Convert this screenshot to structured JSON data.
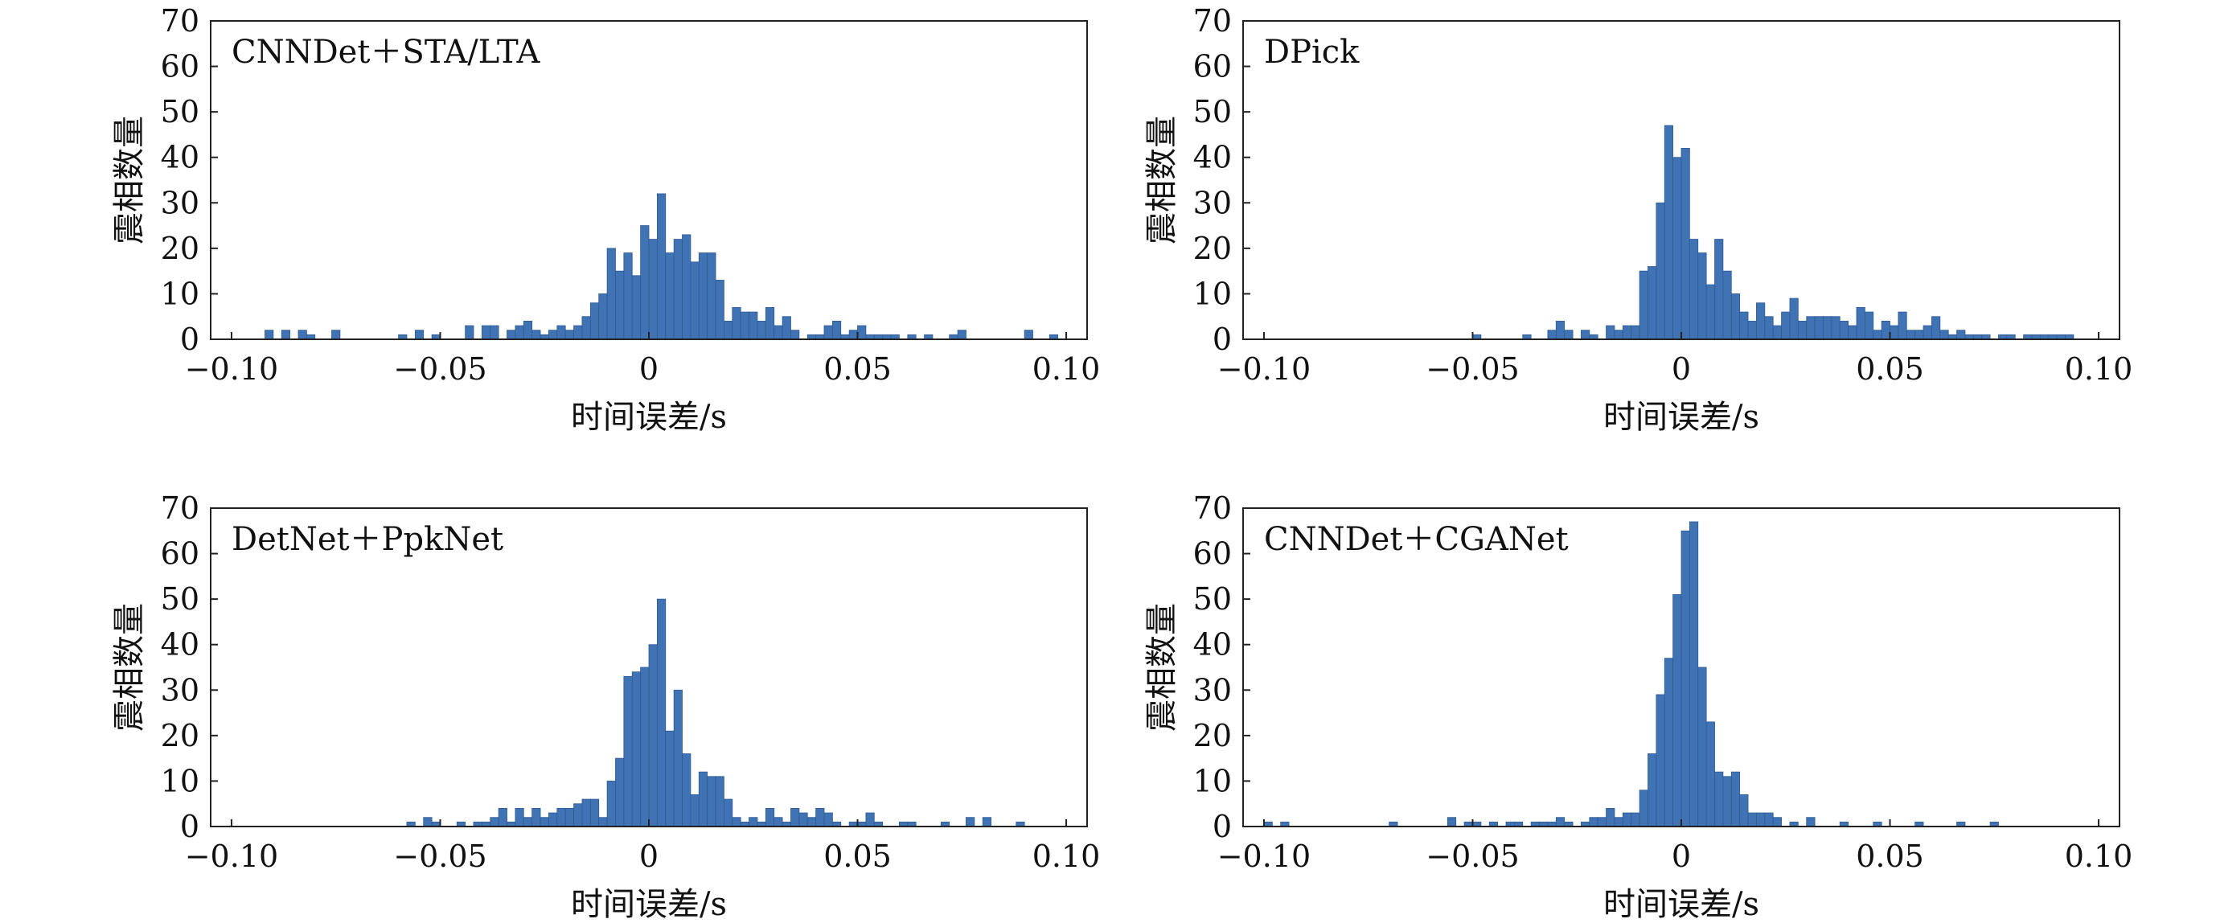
{
  "figure": {
    "panels": [
      {
        "label": "CNNDet＋STA/LTA",
        "xlabel": "时间误差/s",
        "ylabel": "震相数量"
      },
      {
        "label": "DPick",
        "xlabel": "时间误差/s",
        "ylabel": "震相数量"
      },
      {
        "label": "DetNet＋PpkNet",
        "xlabel": "时间误差/s",
        "ylabel": "震相数量"
      },
      {
        "label": "CNNDet＋CGANet",
        "xlabel": "时间误差/s",
        "ylabel": "震相数量"
      }
    ]
  },
  "chart_data": [
    {
      "type": "bar",
      "title": "CNNDet＋STA/LTA",
      "xlabel": "时间误差/s",
      "ylabel": "震相数量",
      "xlim": [
        -0.105,
        0.105
      ],
      "ylim": [
        0,
        70
      ],
      "xticks": [
        "−0.10",
        "−0.05",
        "0",
        "0.05",
        "0.10"
      ],
      "yticks": [
        "0",
        "10",
        "20",
        "30",
        "40",
        "50",
        "60",
        "70"
      ],
      "bin_width": 0.002,
      "bins": [
        [
          -0.091,
          2
        ],
        [
          -0.087,
          2
        ],
        [
          -0.083,
          2
        ],
        [
          -0.081,
          1
        ],
        [
          -0.075,
          2
        ],
        [
          -0.059,
          1
        ],
        [
          -0.055,
          2
        ],
        [
          -0.051,
          1
        ],
        [
          -0.043,
          3
        ],
        [
          -0.039,
          3
        ],
        [
          -0.037,
          3
        ],
        [
          -0.033,
          2
        ],
        [
          -0.031,
          3
        ],
        [
          -0.029,
          4
        ],
        [
          -0.027,
          2
        ],
        [
          -0.025,
          1
        ],
        [
          -0.023,
          2
        ],
        [
          -0.021,
          3
        ],
        [
          -0.019,
          2
        ],
        [
          -0.017,
          3
        ],
        [
          -0.015,
          5
        ],
        [
          -0.013,
          8
        ],
        [
          -0.011,
          10
        ],
        [
          -0.009,
          20
        ],
        [
          -0.007,
          15
        ],
        [
          -0.005,
          19
        ],
        [
          -0.003,
          14
        ],
        [
          -0.001,
          25
        ],
        [
          0.001,
          22
        ],
        [
          0.003,
          32
        ],
        [
          0.005,
          19
        ],
        [
          0.007,
          22
        ],
        [
          0.009,
          23
        ],
        [
          0.011,
          17
        ],
        [
          0.013,
          19
        ],
        [
          0.015,
          19
        ],
        [
          0.017,
          13
        ],
        [
          0.019,
          4
        ],
        [
          0.021,
          7
        ],
        [
          0.023,
          6
        ],
        [
          0.025,
          6
        ],
        [
          0.027,
          4
        ],
        [
          0.029,
          7
        ],
        [
          0.031,
          3
        ],
        [
          0.033,
          5
        ],
        [
          0.035,
          2
        ],
        [
          0.039,
          1
        ],
        [
          0.041,
          1
        ],
        [
          0.043,
          3
        ],
        [
          0.045,
          4
        ],
        [
          0.047,
          1
        ],
        [
          0.049,
          2
        ],
        [
          0.051,
          3
        ],
        [
          0.053,
          1
        ],
        [
          0.055,
          1
        ],
        [
          0.057,
          1
        ],
        [
          0.059,
          1
        ],
        [
          0.063,
          1
        ],
        [
          0.067,
          1
        ],
        [
          0.073,
          1
        ],
        [
          0.075,
          2
        ],
        [
          0.091,
          2
        ],
        [
          0.097,
          1
        ]
      ]
    },
    {
      "type": "bar",
      "title": "DPick",
      "xlabel": "时间误差/s",
      "ylabel": "震相数量",
      "xlim": [
        -0.105,
        0.105
      ],
      "ylim": [
        0,
        70
      ],
      "xticks": [
        "−0.10",
        "−0.05",
        "0",
        "0.05",
        "0.10"
      ],
      "yticks": [
        "0",
        "10",
        "20",
        "30",
        "40",
        "50",
        "60",
        "70"
      ],
      "bin_width": 0.002,
      "bins": [
        [
          -0.049,
          1
        ],
        [
          -0.037,
          1
        ],
        [
          -0.031,
          2
        ],
        [
          -0.029,
          4
        ],
        [
          -0.027,
          2
        ],
        [
          -0.023,
          2
        ],
        [
          -0.021,
          1
        ],
        [
          -0.017,
          3
        ],
        [
          -0.015,
          2
        ],
        [
          -0.013,
          3
        ],
        [
          -0.011,
          3
        ],
        [
          -0.009,
          15
        ],
        [
          -0.007,
          16
        ],
        [
          -0.005,
          30
        ],
        [
          -0.003,
          47
        ],
        [
          -0.001,
          40
        ],
        [
          0.001,
          42
        ],
        [
          0.003,
          22
        ],
        [
          0.005,
          19
        ],
        [
          0.007,
          12
        ],
        [
          0.009,
          22
        ],
        [
          0.011,
          15
        ],
        [
          0.013,
          10
        ],
        [
          0.015,
          6
        ],
        [
          0.017,
          4
        ],
        [
          0.019,
          8
        ],
        [
          0.021,
          5
        ],
        [
          0.023,
          3
        ],
        [
          0.025,
          6
        ],
        [
          0.027,
          9
        ],
        [
          0.029,
          4
        ],
        [
          0.031,
          5
        ],
        [
          0.033,
          5
        ],
        [
          0.035,
          5
        ],
        [
          0.037,
          5
        ],
        [
          0.039,
          4
        ],
        [
          0.041,
          3
        ],
        [
          0.043,
          7
        ],
        [
          0.045,
          6
        ],
        [
          0.047,
          2
        ],
        [
          0.049,
          4
        ],
        [
          0.051,
          3
        ],
        [
          0.053,
          6
        ],
        [
          0.055,
          2
        ],
        [
          0.057,
          2
        ],
        [
          0.059,
          3
        ],
        [
          0.061,
          5
        ],
        [
          0.063,
          2
        ],
        [
          0.065,
          1
        ],
        [
          0.067,
          2
        ],
        [
          0.069,
          1
        ],
        [
          0.071,
          1
        ],
        [
          0.073,
          1
        ],
        [
          0.077,
          1
        ],
        [
          0.079,
          1
        ],
        [
          0.083,
          1
        ],
        [
          0.085,
          1
        ],
        [
          0.087,
          1
        ],
        [
          0.089,
          1
        ],
        [
          0.091,
          1
        ],
        [
          0.093,
          1
        ]
      ]
    },
    {
      "type": "bar",
      "title": "DetNet＋PpkNet",
      "xlabel": "时间误差/s",
      "ylabel": "震相数量",
      "xlim": [
        -0.105,
        0.105
      ],
      "ylim": [
        0,
        70
      ],
      "xticks": [
        "−0.10",
        "−0.05",
        "0",
        "0.05",
        "0.10"
      ],
      "yticks": [
        "0",
        "10",
        "20",
        "30",
        "40",
        "50",
        "60",
        "70"
      ],
      "bin_width": 0.002,
      "bins": [
        [
          -0.057,
          1
        ],
        [
          -0.053,
          2
        ],
        [
          -0.051,
          1
        ],
        [
          -0.045,
          1
        ],
        [
          -0.041,
          1
        ],
        [
          -0.039,
          1
        ],
        [
          -0.037,
          2
        ],
        [
          -0.035,
          4
        ],
        [
          -0.033,
          1
        ],
        [
          -0.031,
          4
        ],
        [
          -0.029,
          2
        ],
        [
          -0.027,
          4
        ],
        [
          -0.025,
          2
        ],
        [
          -0.023,
          3
        ],
        [
          -0.021,
          4
        ],
        [
          -0.019,
          4
        ],
        [
          -0.017,
          5
        ],
        [
          -0.015,
          6
        ],
        [
          -0.013,
          6
        ],
        [
          -0.011,
          2
        ],
        [
          -0.009,
          10
        ],
        [
          -0.007,
          15
        ],
        [
          -0.005,
          33
        ],
        [
          -0.003,
          34
        ],
        [
          -0.001,
          35
        ],
        [
          0.001,
          40
        ],
        [
          0.003,
          50
        ],
        [
          0.005,
          21
        ],
        [
          0.007,
          30
        ],
        [
          0.009,
          16
        ],
        [
          0.011,
          7
        ],
        [
          0.013,
          12
        ],
        [
          0.015,
          11
        ],
        [
          0.017,
          11
        ],
        [
          0.019,
          6
        ],
        [
          0.021,
          2
        ],
        [
          0.023,
          1
        ],
        [
          0.025,
          2
        ],
        [
          0.027,
          1
        ],
        [
          0.029,
          4
        ],
        [
          0.031,
          2
        ],
        [
          0.033,
          1
        ],
        [
          0.035,
          4
        ],
        [
          0.037,
          3
        ],
        [
          0.039,
          2
        ],
        [
          0.041,
          4
        ],
        [
          0.043,
          3
        ],
        [
          0.045,
          1
        ],
        [
          0.049,
          1
        ],
        [
          0.051,
          1
        ],
        [
          0.053,
          3
        ],
        [
          0.055,
          1
        ],
        [
          0.061,
          1
        ],
        [
          0.063,
          1
        ],
        [
          0.071,
          1
        ],
        [
          0.077,
          2
        ],
        [
          0.081,
          2
        ],
        [
          0.089,
          1
        ]
      ]
    },
    {
      "type": "bar",
      "title": "CNNDet＋CGANet",
      "xlabel": "时间误差/s",
      "ylabel": "震相数量",
      "xlim": [
        -0.105,
        0.105
      ],
      "ylim": [
        0,
        70
      ],
      "xticks": [
        "−0.10",
        "−0.05",
        "0",
        "0.05",
        "0.10"
      ],
      "yticks": [
        "0",
        "10",
        "20",
        "30",
        "40",
        "50",
        "60",
        "70"
      ],
      "bin_width": 0.002,
      "bins": [
        [
          -0.099,
          1
        ],
        [
          -0.095,
          1
        ],
        [
          -0.069,
          1
        ],
        [
          -0.055,
          2
        ],
        [
          -0.051,
          1
        ],
        [
          -0.049,
          1
        ],
        [
          -0.045,
          1
        ],
        [
          -0.041,
          1
        ],
        [
          -0.039,
          1
        ],
        [
          -0.035,
          1
        ],
        [
          -0.033,
          1
        ],
        [
          -0.031,
          1
        ],
        [
          -0.029,
          2
        ],
        [
          -0.027,
          1
        ],
        [
          -0.023,
          1
        ],
        [
          -0.021,
          2
        ],
        [
          -0.019,
          2
        ],
        [
          -0.017,
          4
        ],
        [
          -0.015,
          2
        ],
        [
          -0.013,
          3
        ],
        [
          -0.011,
          3
        ],
        [
          -0.009,
          8
        ],
        [
          -0.007,
          16
        ],
        [
          -0.005,
          29
        ],
        [
          -0.003,
          37
        ],
        [
          -0.001,
          51
        ],
        [
          0.001,
          65
        ],
        [
          0.003,
          67
        ],
        [
          0.005,
          35
        ],
        [
          0.007,
          23
        ],
        [
          0.009,
          12
        ],
        [
          0.011,
          11
        ],
        [
          0.013,
          12
        ],
        [
          0.015,
          7
        ],
        [
          0.017,
          3
        ],
        [
          0.019,
          3
        ],
        [
          0.021,
          3
        ],
        [
          0.023,
          2
        ],
        [
          0.027,
          1
        ],
        [
          0.031,
          2
        ],
        [
          0.039,
          1
        ],
        [
          0.047,
          1
        ],
        [
          0.057,
          1
        ],
        [
          0.067,
          1
        ],
        [
          0.075,
          1
        ]
      ]
    }
  ]
}
